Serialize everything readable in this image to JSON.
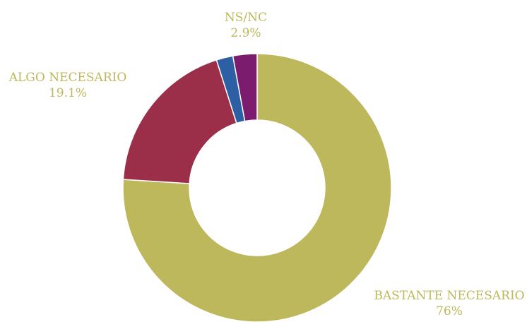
{
  "chart_data": {
    "type": "pie",
    "categories": [
      "BASTANTE NECESARIO",
      "ALGO NECESARIO",
      "",
      "NS/NC"
    ],
    "values": [
      76,
      19.1,
      2.0,
      2.9
    ],
    "value_labels": [
      "76%",
      "19.1%",
      "",
      "2.9%"
    ],
    "colors": [
      "#bdb85b",
      "#9b2f4a",
      "#2c5fa3",
      "#7c1c6f"
    ],
    "title": "",
    "legend": "none",
    "hole": "donut"
  }
}
